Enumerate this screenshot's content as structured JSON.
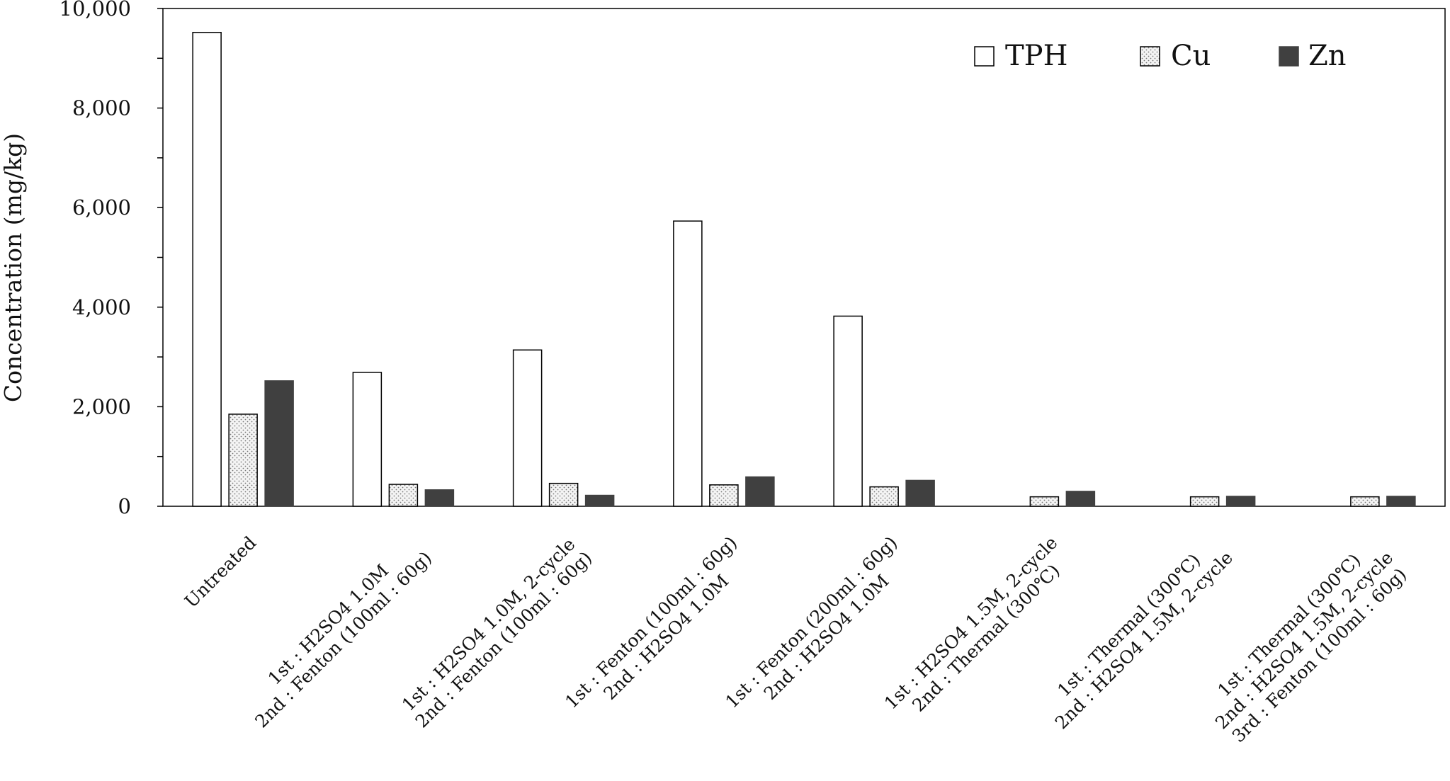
{
  "chart_data": {
    "type": "bar",
    "title": "",
    "xlabel": "",
    "ylabel": "Concentration (mg/kg)",
    "ylim": [
      0,
      10000
    ],
    "yticks": [
      0,
      2000,
      4000,
      6000,
      8000,
      10000
    ],
    "ytick_labels": [
      "0",
      "2,000",
      "4,000",
      "6,000",
      "8,000",
      "10,000"
    ],
    "grid": false,
    "legend_position": "top-right",
    "categories": [
      [
        "Untreated"
      ],
      [
        "1st : H2SO4 1.0M",
        "2nd : Fenton (100ml : 60g)"
      ],
      [
        "1st : H2SO4 1.0M, 2-cycle",
        "2nd : Fenton (100ml : 60g)"
      ],
      [
        "1st : Fenton (100ml : 60g)",
        "2nd : H2SO4 1.0M"
      ],
      [
        "1st : Fenton (200ml : 60g)",
        "2nd : H2SO4 1.0M"
      ],
      [
        "1st : H2SO4 1.5M, 2-cycle",
        "2nd : Thermal (300℃)"
      ],
      [
        "1st : Thermal (300℃)",
        "2nd : H2SO4 1.5M, 2-cycle"
      ],
      [
        "1st : Thermal (300℃)",
        "2nd : H2SO4 1.5M, 2-cycle",
        "3rd : Fenton (100ml : 60g)"
      ]
    ],
    "series": [
      {
        "name": "TPH",
        "style": "white",
        "values": [
          9520,
          2690,
          3140,
          5730,
          3820,
          0,
          0,
          0
        ]
      },
      {
        "name": "Cu",
        "style": "dotted",
        "values": [
          1850,
          440,
          460,
          430,
          390,
          190,
          190,
          190
        ]
      },
      {
        "name": "Zn",
        "style": "dark",
        "values": [
          2520,
          330,
          220,
          590,
          520,
          300,
          200,
          200
        ]
      }
    ],
    "colors": {
      "TPH": "#ffffff",
      "Cu": "#e8e8e8",
      "Zn": "#404040",
      "axis": "#000000"
    }
  }
}
